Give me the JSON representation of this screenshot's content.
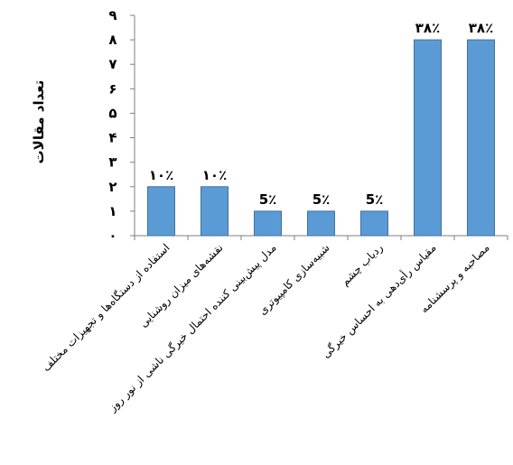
{
  "chart_data": {
    "type": "bar",
    "ylabel": "تعداد مقالات",
    "ylim": [
      0,
      9
    ],
    "yticks": [
      "٠",
      "١",
      "٢",
      "٣",
      "۴",
      "۵",
      "۶",
      "٧",
      "٨",
      "٩"
    ],
    "grid": false,
    "categories": [
      "استفاده از دستگاه‌ها و تجهیزات مختلف",
      "نقشه‌های میزان روشنایی",
      "مدل پیش‌بینی کننده احتمال خیرگی ناشی از نور روز",
      "شبیه‌سازی کامپیوتری",
      "ردیاب چشم",
      "مقیاس رأی‌دهی به احساس خیرگی",
      "مصاحبه و پرسشنامه"
    ],
    "values": [
      2,
      2,
      1,
      1,
      1,
      8,
      8
    ],
    "data_labels": [
      "١٠٪",
      "١٠٪",
      "5٪",
      "5٪",
      "5٪",
      "٣٨٪",
      "٣٨٪"
    ],
    "colors": {
      "bar_fill": "#5b9bd5",
      "bar_stroke": "#41719c",
      "axis": "#7f7f7f"
    }
  }
}
